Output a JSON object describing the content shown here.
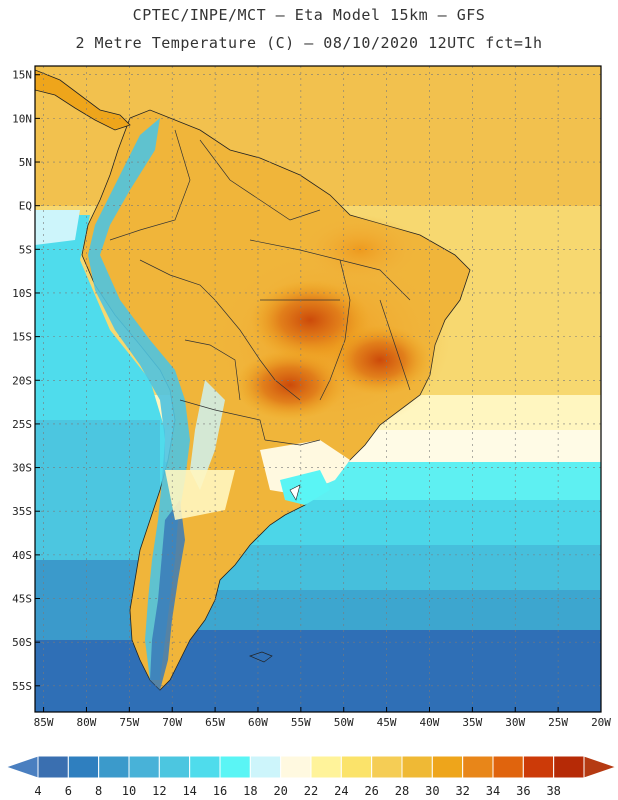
{
  "title_line1": "CPTEC/INPE/MCT –  Eta Model 15km – GFS",
  "title_line2": "2 Metre Temperature (C) – 08/10/2020 12UTC fct=1h",
  "latitude_labels": [
    "15N",
    "10N",
    "5N",
    "EQ",
    "5S",
    "10S",
    "15S",
    "20S",
    "25S",
    "30S",
    "35S",
    "40S",
    "45S",
    "50S",
    "55S"
  ],
  "longitude_labels": [
    "85W",
    "80W",
    "75W",
    "70W",
    "65W",
    "60W",
    "55W",
    "50W",
    "45W",
    "40W",
    "35W",
    "30W",
    "25W",
    "20W"
  ],
  "colorbar": {
    "labels": [
      "4",
      "6",
      "8",
      "10",
      "12",
      "14",
      "16",
      "18",
      "20",
      "22",
      "24",
      "26",
      "28",
      "30",
      "32",
      "34",
      "36",
      "38"
    ],
    "colors": [
      "#3a6fb0",
      "#2f7fbf",
      "#3b9acb",
      "#48b2d8",
      "#4cc6e0",
      "#4fdcec",
      "#5af5f5",
      "#cdf5fb",
      "#fff9e0",
      "#fff39a",
      "#fbe36a",
      "#f5cd55",
      "#efb935",
      "#eea51b",
      "#e88619",
      "#e0640d",
      "#cc3a08",
      "#b62a06"
    ],
    "min_color": "#4a7fc0",
    "max_color": "#b53a12"
  },
  "map_extent": {
    "lon_min": -86,
    "lon_max": -20,
    "lat_min": -58,
    "lat_max": 16
  }
}
